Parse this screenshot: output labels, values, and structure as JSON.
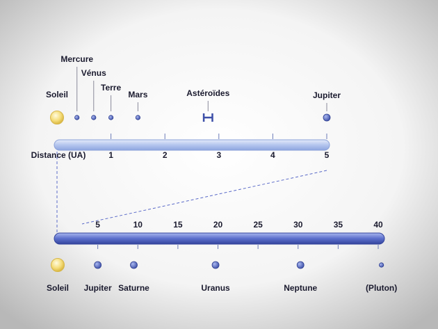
{
  "top": {
    "axis_label": "Distance (UA)",
    "xlim": [
      0,
      5
    ],
    "xticks": [
      1,
      2,
      3,
      4,
      5
    ],
    "bodies": [
      {
        "name": "Soleil",
        "distance": 0,
        "marker": "sun"
      },
      {
        "name": "Mercure",
        "distance": 0.37,
        "marker": "small"
      },
      {
        "name": "Vénus",
        "distance": 0.68,
        "marker": "small"
      },
      {
        "name": "Terre",
        "distance": 1,
        "marker": "small"
      },
      {
        "name": "Mars",
        "distance": 1.5,
        "marker": "small"
      },
      {
        "name": "Astéroïdes",
        "distance": [
          2.72,
          2.88
        ],
        "marker": "range"
      },
      {
        "name": "Jupiter",
        "distance": 5,
        "marker": "large"
      }
    ]
  },
  "bottom": {
    "xlim": [
      0,
      40
    ],
    "xticks": [
      5,
      10,
      15,
      20,
      25,
      30,
      35,
      40
    ],
    "bodies": [
      {
        "name": "Soleil",
        "distance": 0,
        "marker": "sun"
      },
      {
        "name": "Jupiter",
        "distance": 5,
        "marker": "large"
      },
      {
        "name": "Saturne",
        "distance": 9.5,
        "marker": "large"
      },
      {
        "name": "Uranus",
        "distance": 19.7,
        "marker": "large"
      },
      {
        "name": "Neptune",
        "distance": 30.3,
        "marker": "large"
      },
      {
        "name": "(Pluton)",
        "distance": 40.4,
        "marker": "small"
      }
    ]
  }
}
